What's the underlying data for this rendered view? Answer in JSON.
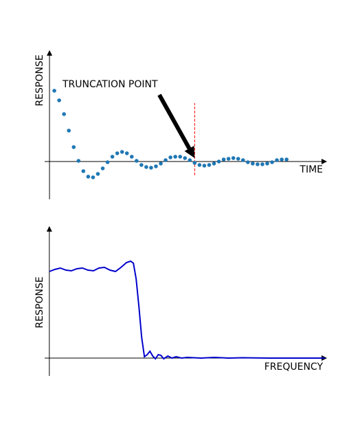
{
  "chart_data": [
    {
      "type": "scatter",
      "xlabel": "TIME",
      "ylabel": "RESPONSE",
      "x": [
        1,
        2,
        3,
        4,
        5,
        6,
        7,
        8,
        9,
        10,
        11,
        12,
        13,
        14,
        15,
        16,
        17,
        18,
        19,
        20,
        21,
        22,
        23,
        24,
        25,
        26,
        27,
        28,
        29,
        30,
        31,
        32,
        33,
        34,
        35,
        36,
        37,
        38,
        39,
        40,
        41,
        42,
        43,
        44,
        45,
        46,
        47,
        48,
        49
      ],
      "values": [
        1.03,
        0.89,
        0.69,
        0.45,
        0.21,
        0.01,
        -0.14,
        -0.22,
        -0.23,
        -0.18,
        -0.1,
        -0.01,
        0.07,
        0.12,
        0.14,
        0.12,
        0.07,
        0.01,
        -0.05,
        -0.08,
        -0.09,
        -0.07,
        -0.03,
        0.02,
        0.06,
        0.07,
        0.07,
        0.05,
        0.02,
        -0.02,
        -0.05,
        -0.06,
        -0.05,
        -0.03,
        0,
        0.03,
        0.04,
        0.05,
        0.04,
        0.02,
        -0.01,
        -0.03,
        -0.04,
        -0.04,
        -0.03,
        -0.01,
        0.02,
        0.03,
        0.03
      ],
      "color": "#1f77b4",
      "xlim": [
        -1,
        57.5
      ],
      "ylim": [
        -0.55,
        1.63
      ],
      "vline": {
        "x": 30,
        "ymin": -0.2,
        "ymax": 0.85,
        "color": "#ff0000",
        "style": "dashed"
      },
      "annotation": {
        "text": "TRUNCATION POINT",
        "xy": [
          30,
          0.05
        ],
        "xytext": [
          22.7,
          0.97
        ]
      }
    },
    {
      "type": "line",
      "xlabel": "FREQUENCY",
      "ylabel": "RESPONSE",
      "x": [
        0,
        2,
        4,
        6,
        8,
        10,
        12,
        14,
        16,
        18,
        20,
        22,
        24,
        26,
        28,
        29.5,
        30.5,
        31.5,
        32.5,
        33.5,
        34.5,
        35.5,
        36.5,
        37.5,
        38.5,
        39.5,
        40.5,
        41.5,
        43,
        44.5,
        46,
        48,
        50,
        55,
        60,
        65,
        70,
        80,
        90,
        100
      ],
      "values": [
        1.26,
        1.29,
        1.31,
        1.28,
        1.27,
        1.3,
        1.31,
        1.28,
        1.27,
        1.31,
        1.32,
        1.28,
        1.26,
        1.32,
        1.39,
        1.41,
        1.38,
        1.15,
        0.75,
        0.3,
        0.02,
        0.05,
        0.1,
        0.03,
        -0.01,
        0.05,
        0.04,
        -0.01,
        0.03,
        0,
        0.02,
        0,
        0.01,
        0,
        0.01,
        0,
        0.005,
        0,
        0,
        0
      ],
      "color": "#0000cc",
      "xlim": [
        -1.7,
        101
      ],
      "ylim": [
        -0.26,
        1.93
      ]
    }
  ]
}
